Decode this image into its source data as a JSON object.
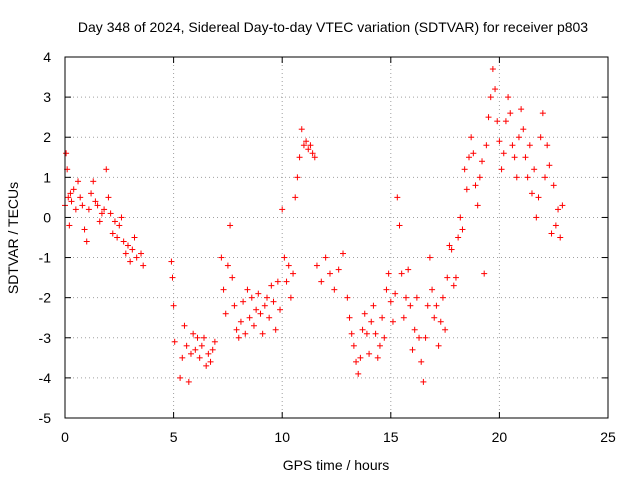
{
  "chart_data": {
    "type": "scatter",
    "title": "Day 348 of 2024, Sidereal Day-to-day VTEC variation (SDTVAR) for receiver p803",
    "xlabel": "GPS time / hours",
    "ylabel": "SDTVAR / TECUs",
    "xlim": [
      0,
      25
    ],
    "ylim": [
      -5,
      4
    ],
    "xticks": [
      0,
      5,
      10,
      15,
      20,
      25
    ],
    "yticks": [
      4,
      3,
      2,
      1,
      0,
      -1,
      -2,
      -3,
      -4,
      -5
    ],
    "xtick_labels": [
      "0",
      "5",
      "10",
      "15",
      "20",
      "25"
    ],
    "ytick_labels": [
      "4",
      "3",
      "2",
      "1",
      "0",
      "-1",
      "-2",
      "-3",
      "-4",
      "-5"
    ],
    "grid": true,
    "marker": "+",
    "color": "#ff0000",
    "series": [
      {
        "name": "SDTVAR",
        "x": [
          0.0,
          0.05,
          0.1,
          0.15,
          0.2,
          0.25,
          0.3,
          0.4,
          0.5,
          0.6,
          0.7,
          0.8,
          0.9,
          1.0,
          1.1,
          1.2,
          1.3,
          1.4,
          1.5,
          1.6,
          1.7,
          1.8,
          1.9,
          2.0,
          2.1,
          2.2,
          2.3,
          2.4,
          2.5,
          2.6,
          2.7,
          2.8,
          2.9,
          3.0,
          3.1,
          3.2,
          3.3,
          3.5,
          3.6,
          4.9,
          4.95,
          5.0,
          5.05,
          5.3,
          5.4,
          5.5,
          5.6,
          5.7,
          5.8,
          5.9,
          6.0,
          6.1,
          6.2,
          6.3,
          6.4,
          6.5,
          6.6,
          6.7,
          6.8,
          6.9,
          7.2,
          7.3,
          7.4,
          7.5,
          7.6,
          7.7,
          7.8,
          7.9,
          8.0,
          8.1,
          8.2,
          8.3,
          8.4,
          8.5,
          8.6,
          8.7,
          8.8,
          8.9,
          9.0,
          9.1,
          9.2,
          9.3,
          9.4,
          9.5,
          9.6,
          9.7,
          9.8,
          9.9,
          10.0,
          10.1,
          10.2,
          10.3,
          10.4,
          10.5,
          10.6,
          10.7,
          10.8,
          10.9,
          11.0,
          11.1,
          11.2,
          11.3,
          11.4,
          11.5,
          11.6,
          11.8,
          12.0,
          12.2,
          12.4,
          12.6,
          12.8,
          13.0,
          13.1,
          13.2,
          13.3,
          13.4,
          13.5,
          13.6,
          13.7,
          13.8,
          13.9,
          14.0,
          14.1,
          14.2,
          14.3,
          14.4,
          14.5,
          14.6,
          14.7,
          14.8,
          14.9,
          15.0,
          15.1,
          15.2,
          15.3,
          15.4,
          15.5,
          15.6,
          15.7,
          15.8,
          15.9,
          16.0,
          16.1,
          16.2,
          16.3,
          16.4,
          16.5,
          16.6,
          16.7,
          16.8,
          16.9,
          17.0,
          17.1,
          17.2,
          17.3,
          17.4,
          17.5,
          17.6,
          17.7,
          17.8,
          17.9,
          18.0,
          18.1,
          18.2,
          18.3,
          18.4,
          18.5,
          18.6,
          18.7,
          18.8,
          18.9,
          19.0,
          19.1,
          19.2,
          19.3,
          19.4,
          19.5,
          19.6,
          19.7,
          19.8,
          19.9,
          20.0,
          20.1,
          20.2,
          20.3,
          20.4,
          20.5,
          20.6,
          20.7,
          20.8,
          20.9,
          21.0,
          21.1,
          21.2,
          21.3,
          21.4,
          21.5,
          21.6,
          21.7,
          21.8,
          21.9,
          22.0,
          22.1,
          22.2,
          22.3,
          22.4,
          22.5,
          22.6,
          22.7,
          22.8,
          22.9
        ],
        "y": [
          0.3,
          1.6,
          1.2,
          0.5,
          -0.2,
          0.6,
          0.4,
          0.7,
          0.2,
          0.9,
          0.5,
          0.3,
          -0.3,
          -0.6,
          0.2,
          0.6,
          0.9,
          0.4,
          0.3,
          -0.1,
          0.1,
          0.2,
          1.2,
          0.5,
          0.1,
          -0.4,
          -0.1,
          -0.5,
          -0.2,
          0.0,
          -0.6,
          -0.9,
          -0.7,
          -1.1,
          -0.8,
          -0.5,
          -1.0,
          -0.9,
          -1.2,
          -1.1,
          -1.5,
          -2.2,
          -3.1,
          -4.0,
          -3.5,
          -2.7,
          -3.2,
          -4.1,
          -3.4,
          -2.9,
          -3.3,
          -3.0,
          -3.5,
          -3.2,
          -3.0,
          -3.7,
          -3.4,
          -3.6,
          -3.3,
          -3.1,
          -1.0,
          -1.8,
          -2.4,
          -1.2,
          -0.2,
          -1.5,
          -2.2,
          -2.8,
          -3.0,
          -2.6,
          -2.1,
          -2.9,
          -1.8,
          -2.5,
          -2.0,
          -2.7,
          -2.3,
          -1.9,
          -2.4,
          -2.9,
          -2.2,
          -2.0,
          -2.5,
          -1.7,
          -2.1,
          -2.8,
          -1.6,
          -2.3,
          0.2,
          -1.0,
          -1.6,
          -1.2,
          -2.0,
          -1.4,
          0.5,
          1.0,
          1.5,
          2.2,
          1.8,
          1.9,
          1.7,
          1.8,
          1.6,
          1.5,
          -1.2,
          -1.6,
          -1.0,
          -1.4,
          -1.8,
          -1.3,
          -0.9,
          -2.0,
          -2.5,
          -2.9,
          -3.2,
          -3.6,
          -3.9,
          -3.5,
          -2.8,
          -2.4,
          -2.9,
          -3.4,
          -2.6,
          -2.2,
          -2.9,
          -3.5,
          -3.2,
          -2.5,
          -3.0,
          -1.8,
          -1.4,
          -2.1,
          -2.6,
          -1.9,
          0.5,
          -0.2,
          -1.4,
          -2.5,
          -2.0,
          -1.3,
          -2.2,
          -3.3,
          -2.8,
          -2.0,
          -3.0,
          -3.6,
          -4.1,
          -3.0,
          -2.2,
          -1.0,
          -1.8,
          -2.5,
          -2.2,
          -3.2,
          -2.6,
          -2.0,
          -2.8,
          -1.5,
          -0.7,
          -0.8,
          -1.7,
          -1.5,
          -0.5,
          0.0,
          -0.3,
          1.2,
          0.7,
          1.5,
          2.0,
          1.6,
          0.8,
          0.3,
          1.0,
          1.4,
          -1.4,
          1.8,
          2.5,
          3.0,
          3.7,
          3.2,
          2.4,
          1.9,
          1.2,
          1.6,
          2.4,
          3.0,
          2.6,
          1.8,
          1.5,
          1.0,
          2.0,
          2.7,
          2.2,
          1.5,
          1.0,
          1.8,
          0.6,
          1.2,
          0.0,
          0.5,
          2.0,
          2.6,
          1.0,
          1.8,
          1.3,
          -0.4,
          0.8,
          -0.2,
          0.2,
          -0.5,
          0.3
        ]
      }
    ]
  }
}
